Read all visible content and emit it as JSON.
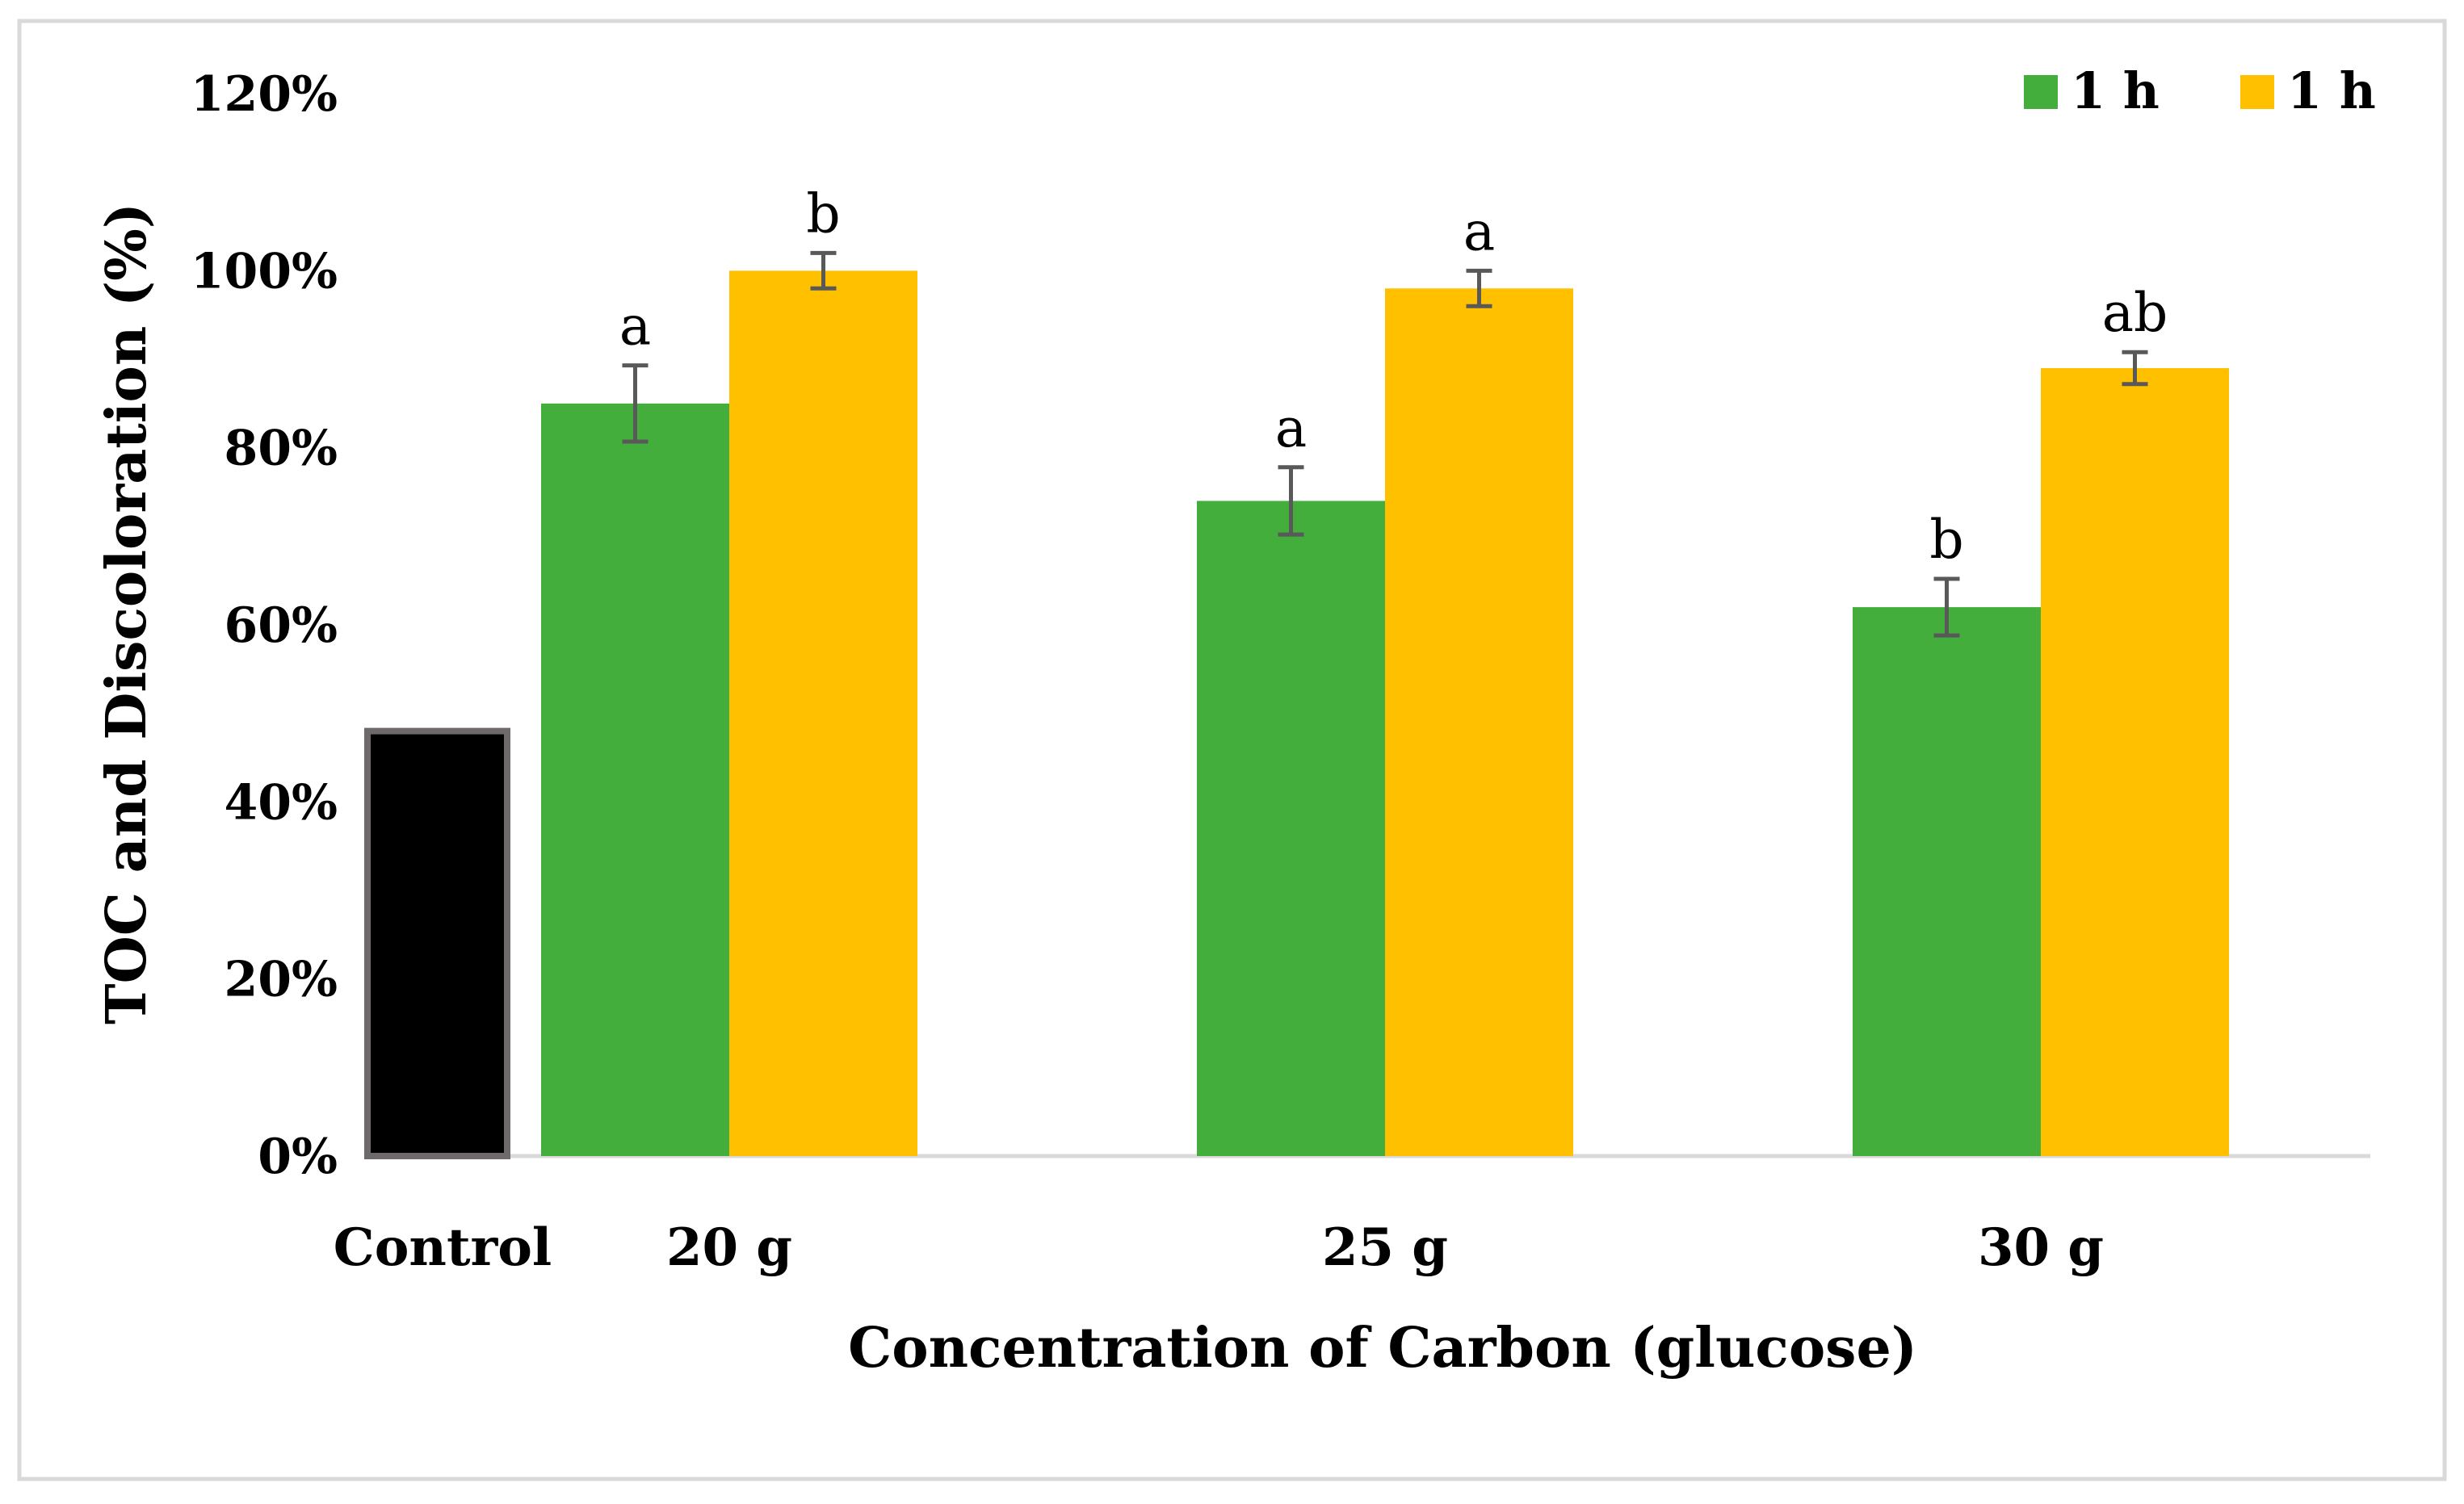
{
  "chart_data": {
    "type": "bar",
    "title": "",
    "xlabel": "Concentration of Carbon (glucose)",
    "ylabel": "TOC and Discoloration (%)",
    "ylim": [
      0,
      120
    ],
    "yticks": [
      "0%",
      "20%",
      "40%",
      "60%",
      "80%",
      "100%",
      "120%"
    ],
    "yticks_values": [
      0,
      20,
      40,
      60,
      80,
      100,
      120
    ],
    "grid": false,
    "legend_position": "top-right",
    "control": {
      "label": "Control",
      "value": 48,
      "color": "#000000",
      "edge_color": "#6e6a6c"
    },
    "categories": [
      "20 g",
      "25 g",
      "30 g"
    ],
    "series": [
      {
        "name": "1 h",
        "color": "#43ae3c",
        "values": [
          85,
          74,
          62
        ],
        "errors": [
          4.3,
          3.8,
          3.2
        ],
        "labels": [
          "a",
          "a",
          "b"
        ]
      },
      {
        "name": "1 h",
        "color": "#ffc000",
        "values": [
          100,
          98,
          89
        ],
        "errors": [
          2.0,
          2.0,
          1.8
        ],
        "labels": [
          "b",
          "a",
          "ab"
        ]
      }
    ]
  }
}
